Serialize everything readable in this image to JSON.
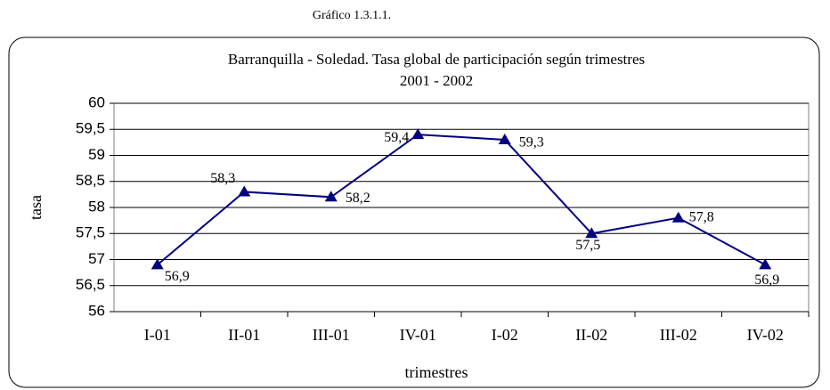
{
  "caption": "Gráfico 1.3.1.1.",
  "chart_data": {
    "type": "line",
    "title": "Barranquilla - Soledad. Tasa global de participación según trimestres",
    "subtitle": "2001 - 2002",
    "x_label": "trimestres",
    "y_label": "tasa",
    "categories": [
      "I-01",
      "II-01",
      "III-01",
      "IV-01",
      "I-02",
      "II-02",
      "III-02",
      "IV-02"
    ],
    "series": [
      {
        "name": "tasa",
        "color": "#000080",
        "values": [
          56.9,
          58.3,
          58.2,
          59.4,
          59.3,
          57.5,
          57.8,
          56.9
        ],
        "value_labels": [
          "56,9",
          "58,3",
          "58,2",
          "59,4",
          "59,3",
          "57,5",
          "57,8",
          "56,9"
        ]
      }
    ],
    "ylim": [
      56,
      60
    ],
    "yticks": [
      56,
      {
        "value": 56.5,
        "label": "56,5"
      },
      57,
      {
        "value": 57.5,
        "label": "57,5"
      },
      58,
      {
        "value": 58.5,
        "label": "58,5"
      },
      59,
      {
        "value": 59.5,
        "label": "59,5"
      },
      60
    ],
    "grid": true
  }
}
